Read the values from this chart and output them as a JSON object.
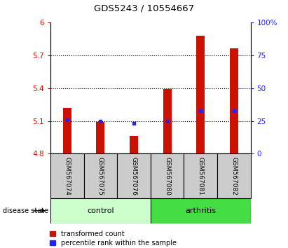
{
  "title": "GDS5243 / 10554667",
  "samples": [
    "GSM567074",
    "GSM567075",
    "GSM567076",
    "GSM567080",
    "GSM567081",
    "GSM567082"
  ],
  "red_values": [
    5.22,
    5.09,
    4.96,
    5.39,
    5.88,
    5.76
  ],
  "blue_values": [
    26,
    25,
    23,
    25,
    33,
    33
  ],
  "ylim_left": [
    4.8,
    6.0
  ],
  "ylim_right": [
    0,
    100
  ],
  "yticks_left": [
    4.8,
    5.1,
    5.4,
    5.7,
    6.0
  ],
  "yticks_right": [
    0,
    25,
    50,
    75,
    100
  ],
  "ytick_labels_left": [
    "4.8",
    "5.1",
    "5.4",
    "5.7",
    "6"
  ],
  "ytick_labels_right": [
    "0",
    "25",
    "50",
    "75",
    "100%"
  ],
  "red_color": "#CC1100",
  "blue_color": "#2222FF",
  "control_color": "#CCFFCC",
  "arthritis_color": "#44DD44",
  "label_bg_color": "#CCCCCC",
  "bar_width": 0.25,
  "legend_red": "transformed count",
  "legend_blue": "percentile rank within the sample"
}
